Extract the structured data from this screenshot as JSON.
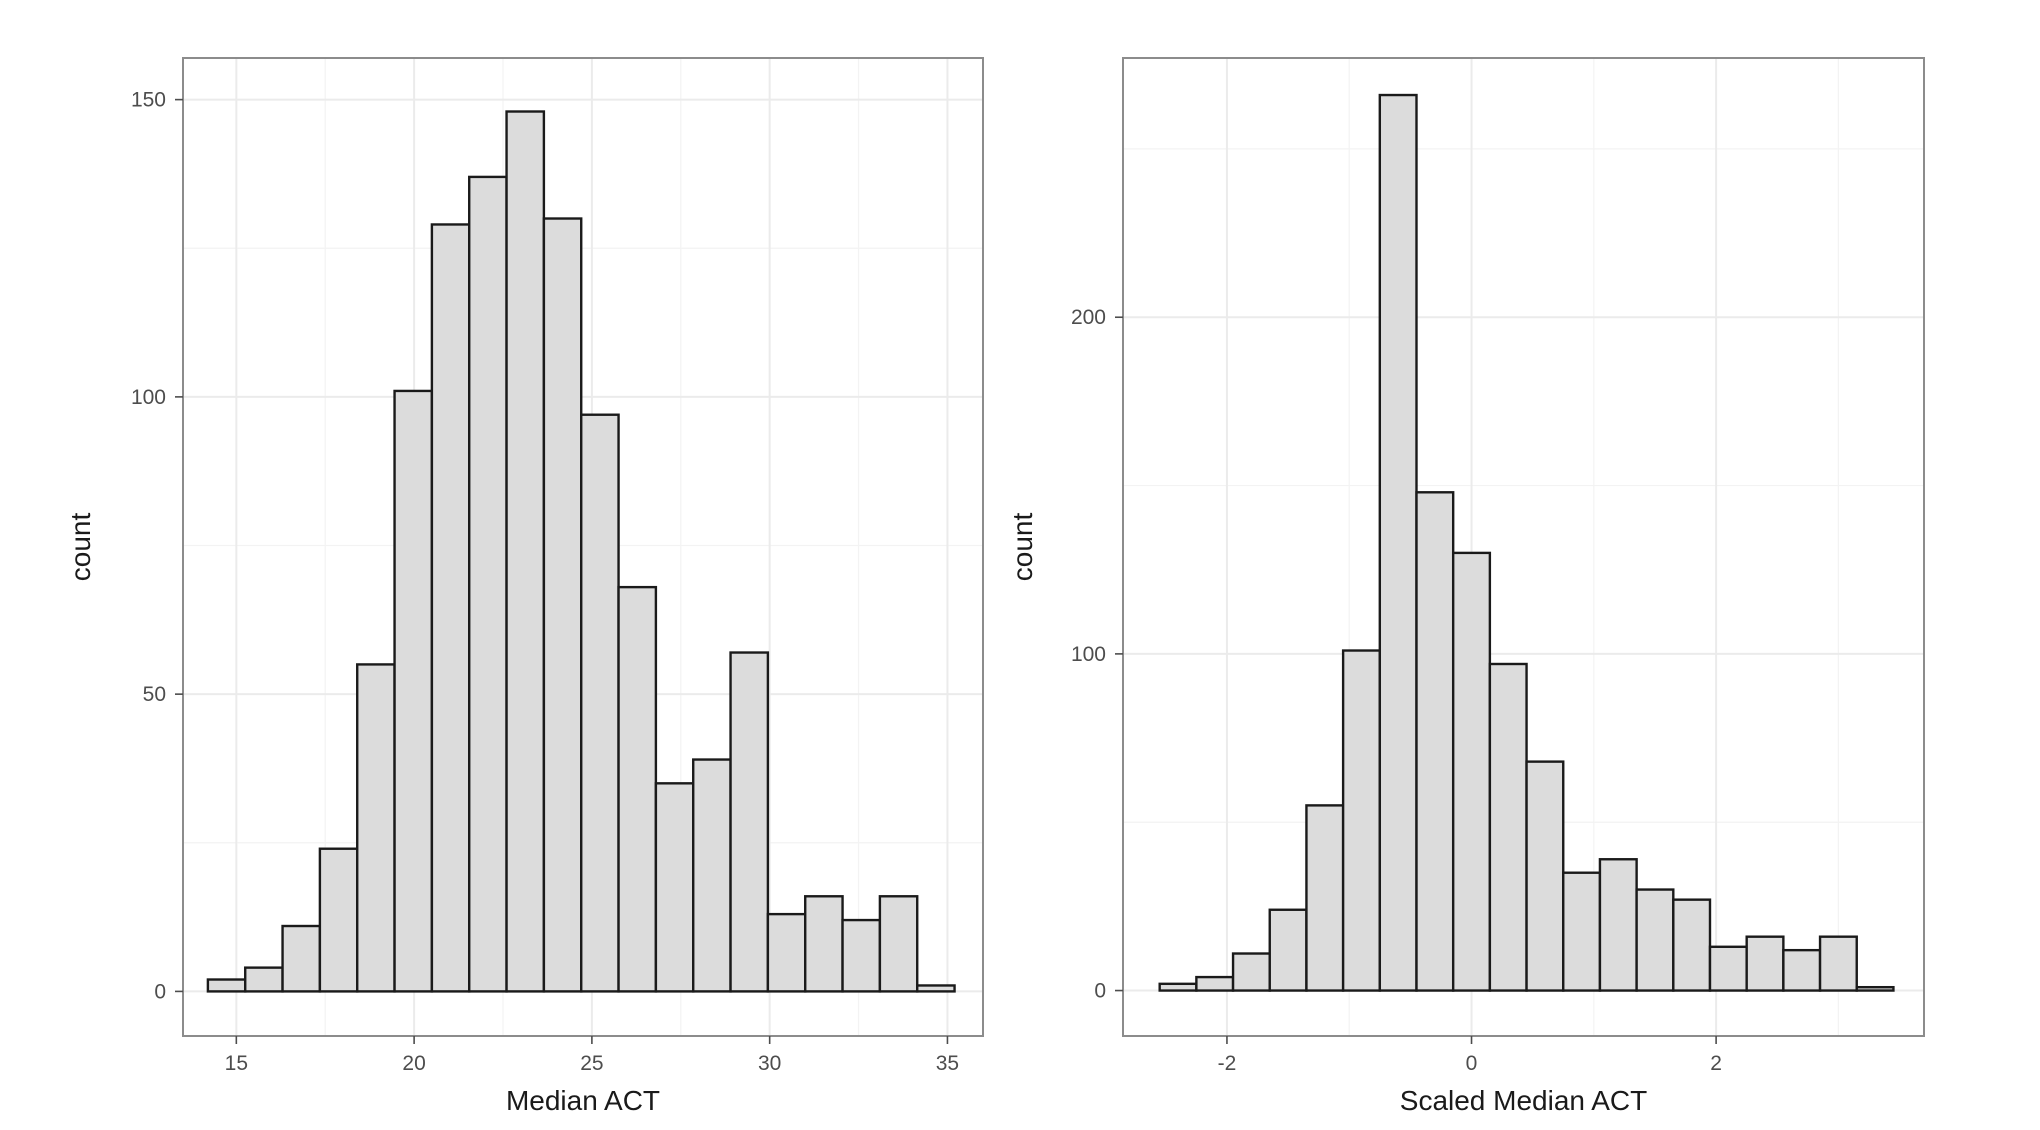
{
  "chart_data": [
    {
      "type": "bar",
      "title": "",
      "xlabel": "Median ACT",
      "ylabel": "count",
      "xlim": [
        13.5,
        36.0
      ],
      "ylim": [
        -7.5,
        157
      ],
      "xticks": [
        15,
        20,
        25,
        30,
        35
      ],
      "yticks": [
        0,
        50,
        100,
        150
      ],
      "bin_width": 1.05,
      "bins": [
        {
          "x0": 14.2,
          "x1": 15.25,
          "count": 2
        },
        {
          "x0": 15.25,
          "x1": 16.3,
          "count": 4
        },
        {
          "x0": 16.3,
          "x1": 17.35,
          "count": 11
        },
        {
          "x0": 17.35,
          "x1": 18.4,
          "count": 24
        },
        {
          "x0": 18.4,
          "x1": 19.45,
          "count": 55
        },
        {
          "x0": 19.45,
          "x1": 20.5,
          "count": 101
        },
        {
          "x0": 20.5,
          "x1": 21.55,
          "count": 129
        },
        {
          "x0": 21.55,
          "x1": 22.6,
          "count": 137
        },
        {
          "x0": 22.6,
          "x1": 23.65,
          "count": 148
        },
        {
          "x0": 23.65,
          "x1": 24.7,
          "count": 130
        },
        {
          "x0": 24.7,
          "x1": 25.75,
          "count": 97
        },
        {
          "x0": 25.75,
          "x1": 26.8,
          "count": 68
        },
        {
          "x0": 26.8,
          "x1": 27.85,
          "count": 35
        },
        {
          "x0": 27.85,
          "x1": 28.9,
          "count": 39
        },
        {
          "x0": 28.9,
          "x1": 29.95,
          "count": 57
        },
        {
          "x0": 29.95,
          "x1": 31.0,
          "count": 13
        },
        {
          "x0": 31.0,
          "x1": 32.05,
          "count": 16
        },
        {
          "x0": 32.05,
          "x1": 33.1,
          "count": 12
        },
        {
          "x0": 33.1,
          "x1": 34.15,
          "count": 16
        },
        {
          "x0": 34.15,
          "x1": 35.2,
          "count": 1
        }
      ]
    },
    {
      "type": "bar",
      "title": "",
      "xlabel": "Scaled Median ACT",
      "ylabel": "count",
      "xlim": [
        -2.85,
        3.7
      ],
      "ylim": [
        -13.5,
        277
      ],
      "xticks": [
        -2,
        0,
        2
      ],
      "yticks": [
        0,
        100,
        200
      ],
      "bin_width": 0.3,
      "bins": [
        {
          "x0": -2.55,
          "x1": -2.25,
          "count": 2
        },
        {
          "x0": -2.25,
          "x1": -1.95,
          "count": 4
        },
        {
          "x0": -1.95,
          "x1": -1.65,
          "count": 11
        },
        {
          "x0": -1.65,
          "x1": -1.35,
          "count": 24
        },
        {
          "x0": -1.35,
          "x1": -1.05,
          "count": 55
        },
        {
          "x0": -1.05,
          "x1": -0.75,
          "count": 101
        },
        {
          "x0": -0.75,
          "x1": -0.45,
          "count": 266
        },
        {
          "x0": -0.45,
          "x1": -0.15,
          "count": 148
        },
        {
          "x0": -0.15,
          "x1": 0.15,
          "count": 130
        },
        {
          "x0": 0.15,
          "x1": 0.45,
          "count": 97
        },
        {
          "x0": 0.45,
          "x1": 0.75,
          "count": 68
        },
        {
          "x0": 0.75,
          "x1": 1.05,
          "count": 35
        },
        {
          "x0": 1.05,
          "x1": 1.35,
          "count": 39
        },
        {
          "x0": 1.35,
          "x1": 1.65,
          "count": 30
        },
        {
          "x0": 1.65,
          "x1": 1.95,
          "count": 27
        },
        {
          "x0": 1.95,
          "x1": 2.25,
          "count": 13
        },
        {
          "x0": 2.25,
          "x1": 2.55,
          "count": 16
        },
        {
          "x0": 2.55,
          "x1": 2.85,
          "count": 12
        },
        {
          "x0": 2.85,
          "x1": 3.15,
          "count": 16
        },
        {
          "x0": 3.15,
          "x1": 3.45,
          "count": 1
        }
      ]
    }
  ]
}
